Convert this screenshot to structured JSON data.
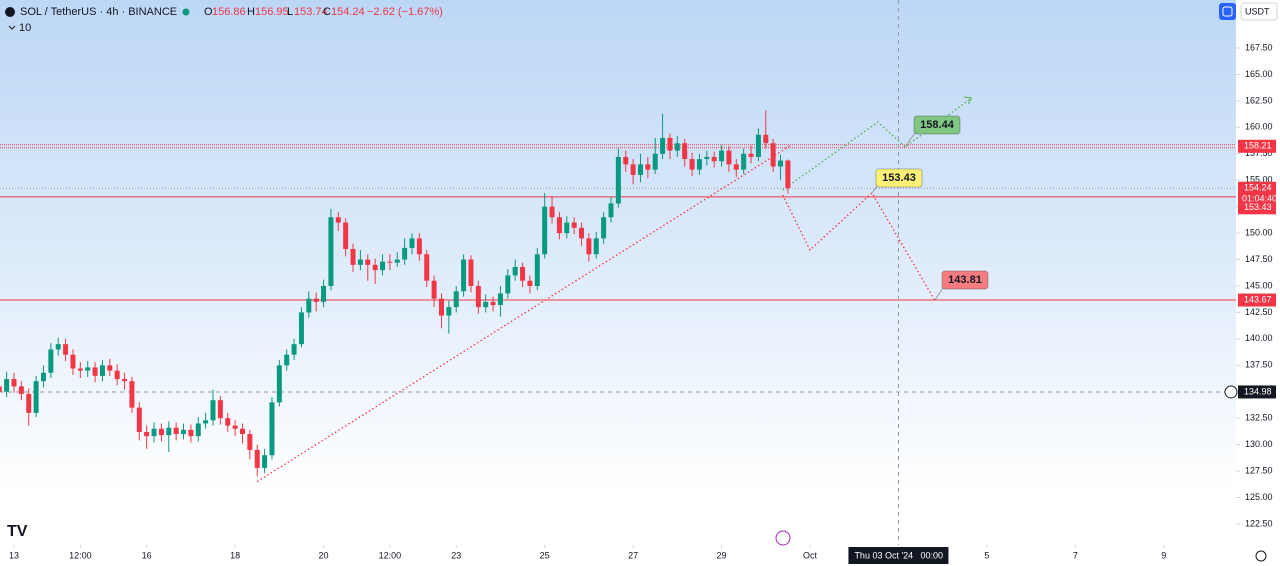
{
  "header": {
    "symbol": "SOL / TetherUS · 4h · BINANCE",
    "o": "O",
    "h": "H",
    "l": "L",
    "c": "C",
    "change": "−2.62 (−1.67%)",
    "indicator": "10",
    "currency": "USDT"
  },
  "chart_data": {
    "type": "candlestick",
    "up_color": "#089981",
    "down_color": "#f23645",
    "open": [
      135.5,
      135.0,
      136.2,
      135.5,
      134.8,
      133.0,
      136.0,
      136.8,
      139.0,
      139.5,
      138.5,
      137.2,
      137.0,
      137.3,
      136.5,
      137.5,
      137.0,
      136.2,
      136.0,
      133.5,
      131.2,
      130.8,
      131.5,
      130.9,
      131.6,
      131.0,
      131.4,
      130.8,
      132.0,
      132.3,
      134.2,
      132.5,
      131.8,
      131.5,
      131.0,
      129.5,
      127.8,
      129.0,
      134.0,
      137.5,
      138.5,
      139.5,
      142.5,
      143.8,
      143.5,
      145.0,
      151.5,
      151.0,
      148.5,
      147.0,
      147.5,
      147.0,
      146.5,
      147.3,
      147.2,
      147.5,
      148.6,
      149.5,
      148.0,
      145.5,
      143.8,
      142.2,
      143.0,
      144.5,
      147.5,
      145.0,
      143.0,
      143.5,
      143.2,
      144.3,
      146.0,
      146.8,
      145.5,
      145.0,
      148.0,
      152.5,
      151.5,
      150.0,
      151.0,
      150.5,
      149.5,
      148.0,
      149.5,
      151.5,
      152.8,
      157.2,
      156.5,
      155.5,
      156.5,
      156.0,
      157.5,
      159.0,
      157.8,
      158.5,
      157.0,
      156.0,
      157.0,
      157.2,
      156.8,
      157.8,
      156.5,
      156.0,
      157.5,
      157.2,
      159.3,
      158.5,
      156.3,
      156.86
    ],
    "high": [
      136.2,
      136.9,
      136.8,
      136.0,
      135.3,
      136.5,
      137.5,
      139.6,
      140.1,
      140.0,
      139.0,
      137.8,
      137.9,
      137.8,
      138.0,
      138.1,
      137.6,
      136.8,
      136.4,
      134.0,
      131.8,
      132.1,
      132.0,
      132.2,
      132.1,
      132.0,
      131.9,
      132.6,
      133.0,
      135.2,
      134.6,
      133.0,
      132.3,
      132.0,
      131.4,
      130.0,
      129.6,
      134.5,
      138.0,
      139.0,
      140.0,
      143.0,
      144.5,
      144.4,
      145.6,
      152.3,
      152.0,
      151.4,
      149.0,
      148.4,
      148.0,
      147.6,
      148.0,
      148.0,
      148.2,
      149.5,
      150.0,
      150.0,
      148.4,
      146.0,
      144.3,
      143.6,
      145.0,
      148.0,
      147.9,
      145.5,
      144.2,
      144.0,
      145.0,
      146.6,
      147.5,
      147.2,
      146.0,
      148.6,
      153.8,
      153.5,
      152.0,
      151.6,
      151.5,
      151.0,
      150.0,
      150.1,
      152.0,
      153.4,
      158.0,
      157.8,
      157.0,
      157.5,
      157.2,
      159.0,
      161.3,
      159.4,
      159.2,
      158.9,
      157.6,
      157.5,
      157.8,
      157.7,
      158.3,
      158.2,
      157.0,
      158.0,
      158.3,
      159.9,
      161.6,
      158.9,
      157.4,
      156.95
    ],
    "low": [
      134.3,
      134.5,
      134.9,
      134.2,
      131.8,
      132.6,
      135.4,
      136.3,
      138.4,
      137.9,
      136.6,
      136.3,
      136.4,
      135.9,
      136.0,
      136.5,
      135.6,
      135.2,
      133.0,
      130.4,
      129.6,
      130.2,
      130.3,
      129.3,
      130.4,
      130.5,
      130.2,
      130.3,
      131.5,
      131.8,
      131.9,
      131.2,
      130.8,
      130.1,
      128.6,
      127.0,
      127.3,
      128.6,
      133.6,
      137.0,
      138.0,
      139.2,
      142.0,
      142.6,
      143.0,
      144.6,
      150.2,
      147.8,
      146.3,
      146.5,
      145.5,
      145.2,
      146.0,
      146.5,
      146.8,
      147.0,
      148.0,
      147.4,
      144.9,
      143.0,
      141.0,
      140.5,
      142.5,
      144.0,
      144.4,
      142.4,
      142.5,
      142.6,
      142.1,
      143.8,
      145.5,
      144.9,
      144.3,
      144.6,
      147.6,
      150.9,
      149.4,
      149.5,
      149.9,
      148.8,
      147.3,
      147.6,
      149.0,
      151.0,
      152.4,
      155.8,
      154.6,
      154.8,
      155.2,
      155.6,
      157.0,
      157.0,
      157.2,
      156.3,
      155.4,
      155.5,
      156.4,
      156.2,
      156.3,
      155.8,
      155.3,
      155.6,
      156.6,
      156.8,
      158.0,
      155.8,
      155.0,
      153.74
    ],
    "close": [
      135.0,
      136.2,
      135.5,
      134.8,
      133.0,
      136.0,
      136.8,
      139.0,
      139.5,
      138.5,
      137.2,
      137.0,
      137.3,
      136.5,
      137.5,
      137.0,
      136.2,
      136.0,
      133.5,
      131.2,
      130.8,
      131.5,
      130.9,
      131.6,
      131.0,
      131.4,
      130.8,
      132.0,
      132.3,
      134.2,
      132.5,
      131.8,
      131.5,
      131.0,
      129.5,
      127.8,
      129.0,
      134.0,
      137.5,
      138.5,
      139.5,
      142.5,
      143.8,
      143.5,
      145.0,
      151.5,
      151.0,
      148.5,
      147.0,
      147.5,
      147.0,
      146.5,
      147.3,
      147.2,
      147.5,
      148.6,
      149.5,
      148.0,
      145.5,
      143.8,
      142.2,
      143.0,
      144.5,
      147.5,
      145.0,
      143.0,
      143.5,
      143.2,
      144.3,
      146.0,
      146.8,
      145.5,
      145.0,
      148.0,
      152.5,
      151.5,
      150.0,
      151.0,
      150.5,
      149.5,
      148.0,
      149.5,
      151.5,
      152.8,
      157.2,
      156.5,
      155.5,
      156.5,
      156.0,
      157.5,
      159.0,
      157.8,
      158.5,
      157.0,
      156.0,
      157.0,
      157.2,
      156.8,
      157.8,
      156.5,
      156.0,
      157.5,
      157.2,
      159.3,
      158.5,
      156.3,
      156.86,
      154.24
    ],
    "countdown": "01:04:40",
    "levels": [
      158.21,
      153.43,
      143.67
    ],
    "level_color": "#f23645",
    "trendline": {
      "color": "#f23645",
      "x": [
        35,
        107.4
      ],
      "y": [
        126.5,
        158.3
      ]
    },
    "projections": [
      {
        "color": "#4caf50",
        "x": [
          106.3,
          119.2,
          122.9,
          131.9
        ],
        "y": [
          154.08,
          160.5,
          158.14,
          162.77
        ]
      },
      {
        "color": "#f23645",
        "x": [
          106.3,
          110.0,
          118.4,
          126.9
        ],
        "y": [
          153.6,
          148.4,
          153.8,
          143.68
        ]
      }
    ],
    "targets": [
      {
        "value": 158.44,
        "color": "#81c784"
      },
      {
        "value": 153.43,
        "color": "#fff176"
      },
      {
        "value": 143.81,
        "color": "#f77c80"
      }
    ],
    "crosshair": {
      "price": 134.98,
      "x": 122,
      "date": "Thu 03 Oct '24",
      "time": "00:00"
    },
    "xlim": [
      0.1,
      167.8
    ],
    "ylim": [
      120.51,
      172.04
    ],
    "yticks": [
      {
        "value": 122.5,
        "label": "122.50"
      },
      {
        "value": 125,
        "label": "125.00"
      },
      {
        "value": 127.5,
        "label": "127.50"
      },
      {
        "value": 130,
        "label": "130.00"
      },
      {
        "value": 132.5,
        "label": "132.50"
      },
      {
        "value": 135,
        "label": "135.00"
      },
      {
        "value": 137.5,
        "label": "137.50"
      },
      {
        "value": 140,
        "label": "140.00"
      },
      {
        "value": 142.5,
        "label": "142.50"
      },
      {
        "value": 145,
        "label": "145.00"
      },
      {
        "value": 147.5,
        "label": "147.50"
      },
      {
        "value": 150,
        "label": "150.00"
      },
      {
        "value": 152.5,
        "label": "152.50"
      },
      {
        "value": 155,
        "label": "155.00"
      },
      {
        "value": 157.5,
        "label": "157.50"
      },
      {
        "value": 160,
        "label": "160.00"
      },
      {
        "value": 162.5,
        "label": "162.50"
      },
      {
        "value": 165,
        "label": "165.00"
      },
      {
        "value": 167.5,
        "label": "167.50"
      }
    ],
    "xticks": [
      {
        "value": 2,
        "label": "13"
      },
      {
        "value": 11,
        "label": "12:00"
      },
      {
        "value": 20,
        "label": "16"
      },
      {
        "value": 32,
        "label": "18"
      },
      {
        "value": 44,
        "label": "20"
      },
      {
        "value": 53,
        "label": "12:00"
      },
      {
        "value": 62,
        "label": "23"
      },
      {
        "value": 74,
        "label": "25"
      },
      {
        "value": 86,
        "label": "27"
      },
      {
        "value": 98,
        "label": "29"
      },
      {
        "value": 110,
        "label": "Oct"
      },
      {
        "value": 134,
        "label": "5"
      },
      {
        "value": 146,
        "label": "7"
      },
      {
        "value": 158,
        "label": "9"
      }
    ]
  }
}
